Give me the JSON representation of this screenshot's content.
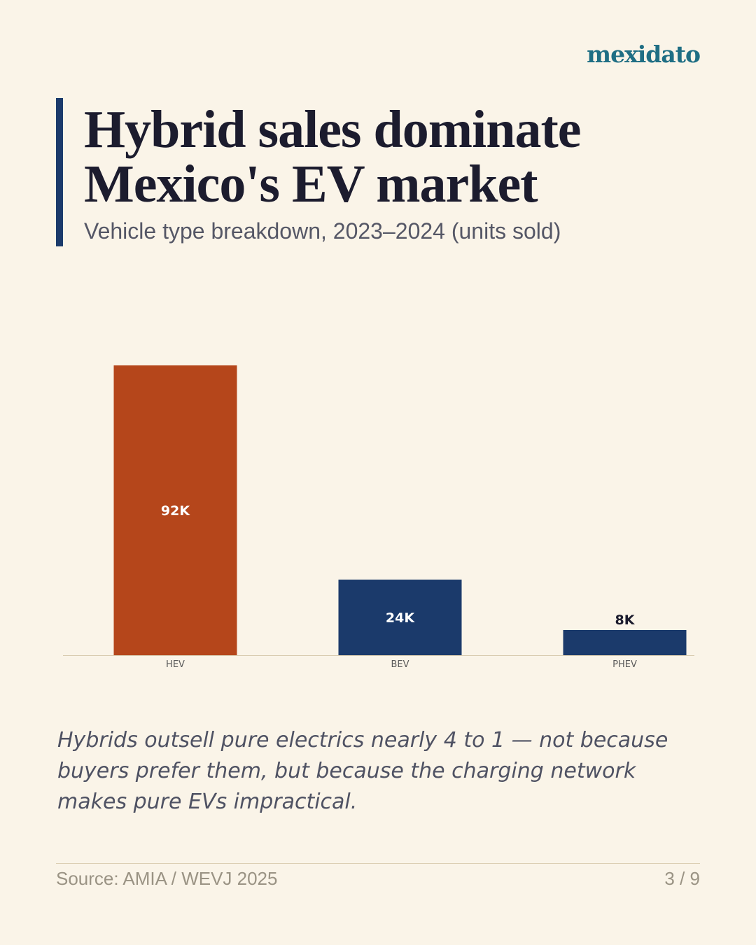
{
  "brand": "mexidato",
  "title_line1": "Hybrid sales dominate",
  "title_line2": "Mexico's EV market",
  "subtitle": "Vehicle type breakdown, 2023–2024 (units sold)",
  "takeaway": "Hybrids outsell pure electrics nearly 4 to 1 — not because buyers prefer them, but because the charging network makes pure EVs impractical.",
  "source": "Source: AMIA / WEVJ 2025",
  "page_indicator": "3 / 9",
  "colors": {
    "background": "#faf4e8",
    "accent": "#1b3a6b",
    "highlight": "#b5461b",
    "brand": "#1f6e84"
  },
  "chart_data": {
    "type": "bar",
    "categories": [
      "HEV",
      "BEV",
      "PHEV"
    ],
    "values": [
      92,
      24,
      8
    ],
    "data_labels": [
      "92K",
      "24K",
      "8K"
    ],
    "colors": [
      "#b5461b",
      "#1b3a6b",
      "#1b3a6b"
    ],
    "title": "",
    "xlabel": "",
    "ylabel": "",
    "ylim": [
      0,
      92
    ],
    "grid": false,
    "legend": "none"
  }
}
